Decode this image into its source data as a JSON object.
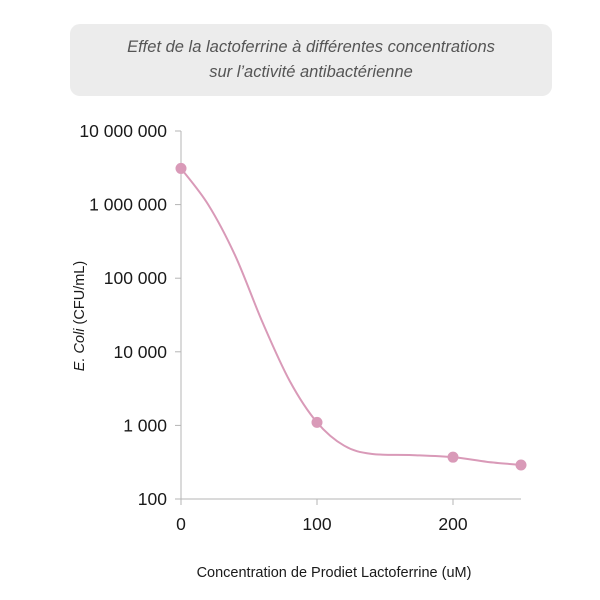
{
  "chart_data": {
    "type": "line",
    "title_lines": [
      "Effet de la lactoferrine à différentes concentrations",
      "sur l’activité antibactérienne"
    ],
    "xlabel": "Concentration de Prodiet Lactoferrine (uM)",
    "ylabel_italic": "E. Coli",
    "ylabel_rest": " (CFU/mL)",
    "x_scale": "linear",
    "y_scale": "log",
    "xlim": [
      0,
      250
    ],
    "ylim": [
      100,
      10000000
    ],
    "x_ticks": [
      {
        "value": 0,
        "label": "0"
      },
      {
        "value": 100,
        "label": "100"
      },
      {
        "value": 200,
        "label": "200"
      }
    ],
    "y_ticks": [
      {
        "value": 10000000,
        "label": "10 000 000"
      },
      {
        "value": 1000000,
        "label": "1 000 000"
      },
      {
        "value": 100000,
        "label": "100 000"
      },
      {
        "value": 10000,
        "label": "10 000"
      },
      {
        "value": 1000,
        "label": "1 000"
      },
      {
        "value": 100,
        "label": "100"
      }
    ],
    "grid": false,
    "legend": "none",
    "series": [
      {
        "color": "#d99ab8",
        "points": [
          {
            "x": 0,
            "y": 3100000
          },
          {
            "x": 100,
            "y": 1100
          },
          {
            "x": 200,
            "y": 370
          },
          {
            "x": 250,
            "y": 290
          }
        ],
        "curve": [
          {
            "x": 0,
            "y": 3100000
          },
          {
            "x": 20,
            "y": 1000000
          },
          {
            "x": 40,
            "y": 200000
          },
          {
            "x": 60,
            "y": 25000
          },
          {
            "x": 80,
            "y": 4000
          },
          {
            "x": 100,
            "y": 1100
          },
          {
            "x": 120,
            "y": 530
          },
          {
            "x": 140,
            "y": 410
          },
          {
            "x": 170,
            "y": 395
          },
          {
            "x": 200,
            "y": 370
          },
          {
            "x": 225,
            "y": 320
          },
          {
            "x": 250,
            "y": 290
          }
        ]
      }
    ],
    "axis_color": "#b5b5b5",
    "text_color": "#1a1a1a"
  }
}
